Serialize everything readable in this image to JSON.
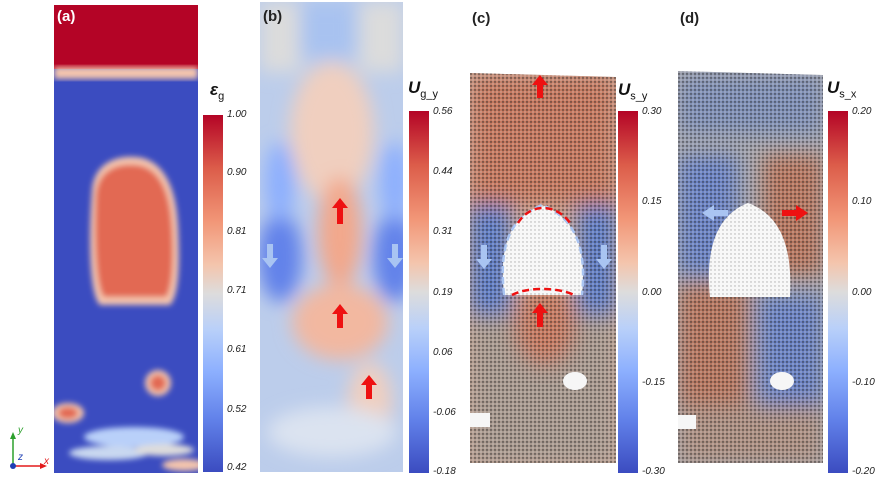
{
  "panels": [
    {
      "label": "(a)"
    },
    {
      "label": "(b)"
    },
    {
      "label": "(c)"
    },
    {
      "label": "(d)"
    }
  ],
  "colorbars": [
    {
      "symbol": "ε",
      "sub": "g",
      "ticks": [
        "1.00",
        "0.90",
        "0.81",
        "0.71",
        "0.61",
        "0.52",
        "0.42"
      ]
    },
    {
      "symbol": "U",
      "sub": "g_y",
      "ticks": [
        "0.56",
        "0.44",
        "0.31",
        "0.19",
        "0.06",
        "-0.06",
        "-0.18"
      ]
    },
    {
      "symbol": "U",
      "sub": "s_y",
      "ticks": [
        "0.30",
        "0.15",
        "0.00",
        "-0.15",
        "-0.30"
      ]
    },
    {
      "symbol": "U",
      "sub": "s_x",
      "ticks": [
        "0.20",
        "0.10",
        "0.00",
        "-0.10",
        "-0.20"
      ]
    }
  ],
  "axes": {
    "y": "y",
    "z": "z",
    "x": "x"
  },
  "colors": {
    "high": "#b40426",
    "low": "#3b4cc0",
    "mid": "#dddcdc",
    "arrow_red": "#ee1111",
    "arrow_blue": "#a9c4f2"
  }
}
